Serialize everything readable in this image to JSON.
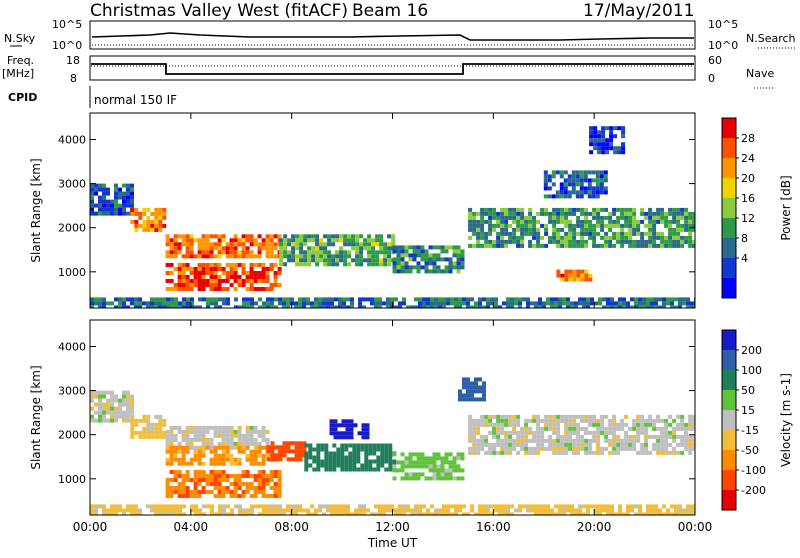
{
  "header": {
    "radar": "Christmas Valley West (fitACF)",
    "beam": "Beam 16",
    "date": "17/May/2011"
  },
  "aux_panels": {
    "nsky": {
      "label": "N.Sky",
      "ticks": [
        "10^5",
        "10^0"
      ]
    },
    "nsearch": {
      "label": "N.Search",
      "ticks": [
        "10^5",
        "10^0"
      ]
    },
    "freq": {
      "label_top": "Freq.",
      "label_bottom": "[MHz]",
      "ticks": [
        "18",
        "8"
      ]
    },
    "nave": {
      "label": "Nave",
      "ticks": [
        "60",
        "0"
      ]
    },
    "cpid": {
      "label": "CPID",
      "value": "normal 150 IF"
    }
  },
  "chart_data": [
    {
      "type": "heatmap",
      "name": "power-panel",
      "xlabel": "Time UT",
      "ylabel": "Slant Range [km]",
      "xlim": [
        0,
        24
      ],
      "ylim": [
        180,
        4600
      ],
      "x_ticks": [
        "00:00",
        "04:00",
        "08:00",
        "12:00",
        "16:00",
        "20:00",
        "00:00"
      ],
      "y_ticks": [
        1000,
        2000,
        3000,
        4000
      ],
      "colorbar": {
        "label": "Power [dB]",
        "ticks": [
          "28",
          "24",
          "20",
          "16",
          "12",
          "8",
          "4"
        ],
        "colors": [
          "#e60000",
          "#ff5000",
          "#ff9400",
          "#f2d200",
          "#8acc3c",
          "#2e9a48",
          "#2a6a8a",
          "#1238d0",
          "#0000ff"
        ]
      },
      "regions": [
        {
          "t": [
            0,
            1.6
          ],
          "r": [
            2300,
            3000
          ],
          "level": 0.2
        },
        {
          "t": [
            1.6,
            3.0
          ],
          "r": [
            1950,
            2450
          ],
          "level": 0.8
        },
        {
          "t": [
            3.0,
            7.5
          ],
          "r": [
            1350,
            1850
          ],
          "level": 0.85
        },
        {
          "t": [
            3.0,
            7.5
          ],
          "r": [
            600,
            1200
          ],
          "level": 0.9
        },
        {
          "t": [
            7.5,
            12.0
          ],
          "r": [
            1200,
            1850
          ],
          "level": 0.4
        },
        {
          "t": [
            12.0,
            14.8
          ],
          "r": [
            1000,
            1600
          ],
          "level": 0.3
        },
        {
          "t": [
            15.0,
            24.0
          ],
          "r": [
            1600,
            2450
          ],
          "level": 0.35
        },
        {
          "t": [
            18.0,
            20.5
          ],
          "r": [
            2700,
            3300
          ],
          "level": 0.2
        },
        {
          "t": [
            19.8,
            21.2
          ],
          "r": [
            3700,
            4300
          ],
          "level": 0.1
        },
        {
          "t": [
            18.5,
            19.8
          ],
          "r": [
            800,
            1050
          ],
          "level": 0.8
        },
        {
          "t": [
            0,
            24
          ],
          "r": [
            200,
            420
          ],
          "level": 0.25
        }
      ]
    },
    {
      "type": "heatmap",
      "name": "velocity-panel",
      "xlabel": "Time UT",
      "ylabel": "Slant Range [km]",
      "xlim": [
        0,
        24
      ],
      "ylim": [
        180,
        4600
      ],
      "x_ticks": [
        "00:00",
        "04:00",
        "08:00",
        "12:00",
        "16:00",
        "20:00",
        "00:00"
      ],
      "y_ticks": [
        1000,
        2000,
        3000,
        4000
      ],
      "colorbar": {
        "label": "Velocity [m s-1]",
        "ticks": [
          "200",
          "100",
          "50",
          "15",
          "-15",
          "-50",
          "-100",
          "-200"
        ],
        "colors": [
          "#1a1acd",
          "#2d5ea8",
          "#1f7f5a",
          "#5fc43c",
          "#bfbfbf",
          "#f2bd38",
          "#ff8c00",
          "#ff4500",
          "#e60000"
        ]
      },
      "regions": [
        {
          "t": [
            0,
            1.6
          ],
          "r": [
            2300,
            3000
          ],
          "v": 0
        },
        {
          "t": [
            1.6,
            3.0
          ],
          "r": [
            1950,
            2450
          ],
          "v": -30
        },
        {
          "t": [
            3.0,
            7.0
          ],
          "r": [
            1700,
            2200
          ],
          "v": 0
        },
        {
          "t": [
            3.0,
            7.5
          ],
          "r": [
            1350,
            1750
          ],
          "v": -60
        },
        {
          "t": [
            3.0,
            7.5
          ],
          "r": [
            600,
            1200
          ],
          "v": -90
        },
        {
          "t": [
            7.0,
            8.5
          ],
          "r": [
            1450,
            1850
          ],
          "v": -180
        },
        {
          "t": [
            8.5,
            12.0
          ],
          "r": [
            1200,
            1800
          ],
          "v": 70
        },
        {
          "t": [
            12.0,
            14.8
          ],
          "r": [
            1000,
            1600
          ],
          "v": 30
        },
        {
          "t": [
            9.5,
            11.0
          ],
          "r": [
            1950,
            2350
          ],
          "v": 220
        },
        {
          "t": [
            15.0,
            24.0
          ],
          "r": [
            1600,
            2450
          ],
          "v": 0
        },
        {
          "t": [
            14.6,
            15.6
          ],
          "r": [
            2800,
            3300
          ],
          "v": 150
        },
        {
          "t": [
            0,
            24
          ],
          "r": [
            200,
            420
          ],
          "v": -30
        }
      ]
    }
  ]
}
